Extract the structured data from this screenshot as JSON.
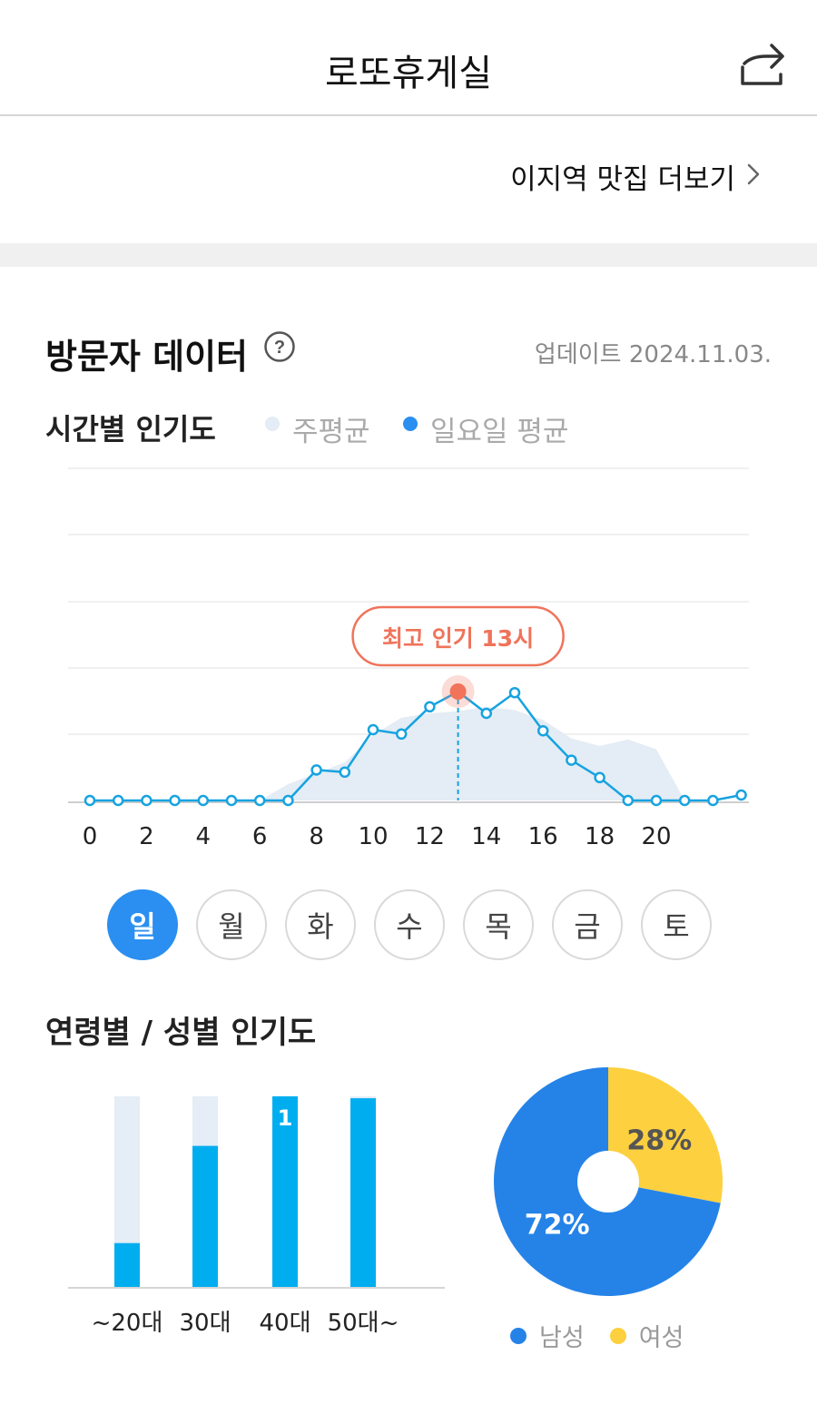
{
  "header": {
    "title": "로또휴게실",
    "share_icon": "share-icon"
  },
  "more_link": {
    "label": "이지역 맛집 더보기"
  },
  "visitor": {
    "title": "방문자 데이터",
    "update": "업데이트 2024.11.03."
  },
  "hourly": {
    "title": "시간별 인기도",
    "legend_week": "주평균",
    "legend_day": "일요일 평균",
    "peak_label": "최고 인기 13시"
  },
  "days": [
    "일",
    "월",
    "화",
    "수",
    "목",
    "금",
    "토"
  ],
  "selected_day": "일",
  "age_gender": {
    "title": "연령별 / 성별 인기도"
  },
  "colors": {
    "accent_blue": "#2b8ff1",
    "line_blue": "#16a3e0",
    "area_fill": "#e4ecf5",
    "peak_red": "#f0735a",
    "bar_blue": "#00aef0",
    "male_blue": "#2583e8",
    "female_yellow": "#fcd03f"
  },
  "chart_data": [
    {
      "type": "line",
      "x": [
        0,
        1,
        2,
        3,
        4,
        5,
        6,
        7,
        8,
        9,
        10,
        11,
        12,
        13,
        14,
        15,
        16,
        17,
        18,
        19,
        20,
        21,
        22,
        23
      ],
      "x_tick_labels": [
        "0",
        "2",
        "4",
        "6",
        "8",
        "10",
        "12",
        "14",
        "16",
        "18",
        "20"
      ],
      "series": [
        {
          "name": "주평균",
          "kind": "area",
          "values": [
            0,
            0,
            0,
            0,
            0,
            0,
            0,
            0.15,
            0.25,
            0.35,
            0.6,
            0.76,
            0.8,
            0.82,
            0.86,
            0.83,
            0.74,
            0.57,
            0.5,
            0.56,
            0.47,
            0,
            0,
            0
          ]
        },
        {
          "name": "일요일 평균",
          "kind": "line",
          "values": [
            0,
            0,
            0,
            0,
            0,
            0,
            0,
            0,
            0.28,
            0.26,
            0.65,
            0.61,
            0.86,
            1.0,
            0.8,
            0.99,
            0.64,
            0.37,
            0.21,
            0,
            0,
            0,
            0,
            0.05
          ]
        }
      ],
      "peak": {
        "x": 13,
        "label": "최고 인기 13시"
      },
      "ylim": [
        0,
        1
      ],
      "grid": true
    },
    {
      "type": "bar",
      "categories": [
        "~20대",
        "30대",
        "40대",
        "50대~"
      ],
      "values": [
        0.23,
        0.74,
        1.0,
        0.99
      ],
      "data_labels": [
        "",
        "",
        "1",
        ""
      ],
      "ylim": [
        0,
        1
      ]
    },
    {
      "type": "pie",
      "categories": [
        "남성",
        "여성"
      ],
      "values": [
        72,
        28
      ],
      "labels": [
        "72%",
        "28%"
      ]
    }
  ]
}
